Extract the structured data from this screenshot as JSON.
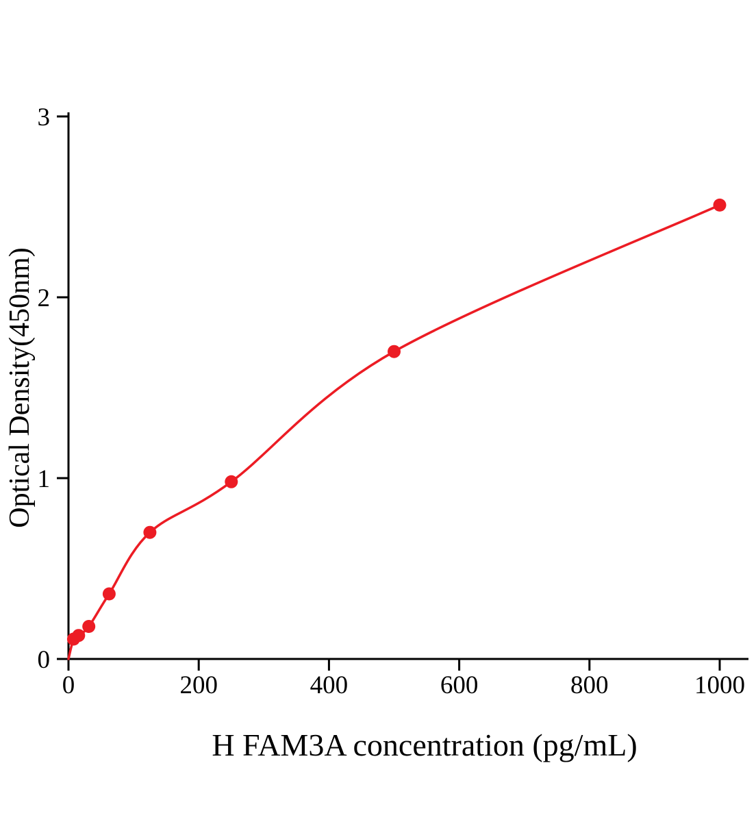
{
  "chart_data": {
    "type": "scatter",
    "xlabel": "H FAM3A concentration (pg/mL)",
    "ylabel": "Optical Density(450nm)",
    "x": [
      7.8,
      15.6,
      31.2,
      62.5,
      125,
      250,
      500,
      1000
    ],
    "y": [
      0.11,
      0.13,
      0.18,
      0.36,
      0.7,
      0.98,
      1.7,
      2.51
    ],
    "curve_through_origin": true,
    "xlim": [
      0,
      1000
    ],
    "ylim": [
      0,
      3
    ],
    "xticks": [
      0,
      200,
      400,
      600,
      800,
      1000
    ],
    "yticks": [
      0,
      1,
      2,
      3
    ],
    "grid": false,
    "legend": "none",
    "point_color": "#ec1c24",
    "line_color": "#ec1c24",
    "axis_color": "#000000",
    "background": "#ffffff"
  }
}
